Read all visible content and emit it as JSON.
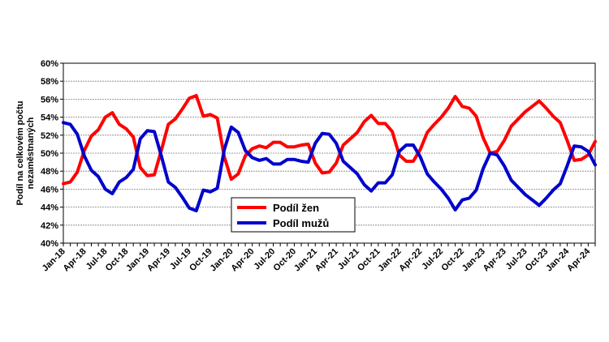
{
  "chart_data": {
    "type": "line",
    "ylabel_lines": [
      "Podíl na celkovém počtu",
      "nezaměstnaných"
    ],
    "ylim": [
      40,
      60
    ],
    "yticks": [
      40,
      42,
      44,
      46,
      48,
      50,
      52,
      54,
      56,
      58,
      60
    ],
    "ytick_suffix": "%",
    "grid": true,
    "legend_position": "bottom-center",
    "x_tick_labels": [
      "Jan-18",
      "Apr-18",
      "Jul-18",
      "Oct-18",
      "Jan-19",
      "Apr-19",
      "Jul-19",
      "Oct-19",
      "Jan-20",
      "Apr-20",
      "Jul-20",
      "Oct-20",
      "Jan-21",
      "Apr-21",
      "Jul-21",
      "Oct-21",
      "Jan-22",
      "Apr-22",
      "Jul-22",
      "Oct-22",
      "Jan-23",
      "Apr-23",
      "Jul-23",
      "Oct-23",
      "Jan-24",
      "Apr-24"
    ],
    "x_tick_step_months": 3,
    "series": [
      {
        "name": "Podíl žen",
        "color": "#ff0000",
        "values": [
          46.6,
          46.8,
          47.9,
          50.3,
          51.9,
          52.6,
          54.0,
          54.5,
          53.2,
          52.7,
          51.8,
          48.4,
          47.5,
          47.6,
          50.3,
          53.2,
          53.8,
          54.9,
          56.1,
          56.4,
          54.1,
          54.3,
          53.9,
          49.6,
          47.1,
          47.7,
          49.7,
          50.5,
          50.8,
          50.6,
          51.2,
          51.2,
          50.7,
          50.7,
          50.9,
          51.0,
          48.9,
          47.8,
          47.9,
          48.9,
          50.9,
          51.6,
          52.3,
          53.5,
          54.2,
          53.3,
          53.3,
          52.4,
          49.8,
          49.1,
          49.1,
          50.4,
          52.3,
          53.2,
          54.0,
          55.0,
          56.3,
          55.2,
          55.0,
          54.1,
          51.7,
          50.0,
          50.2,
          51.4,
          53.0,
          53.8,
          54.6,
          55.2,
          55.8,
          55.0,
          54.1,
          53.4,
          51.4,
          49.2,
          49.3,
          49.8,
          51.3
        ]
      },
      {
        "name": "Podíl mužů",
        "color": "#0000cc",
        "values": [
          53.4,
          53.2,
          52.1,
          49.7,
          48.1,
          47.4,
          46.0,
          45.5,
          46.8,
          47.3,
          48.2,
          51.6,
          52.5,
          52.4,
          49.7,
          46.8,
          46.2,
          45.1,
          43.9,
          43.6,
          45.9,
          45.7,
          46.1,
          50.4,
          52.9,
          52.3,
          50.3,
          49.5,
          49.2,
          49.4,
          48.8,
          48.8,
          49.3,
          49.3,
          49.1,
          49.0,
          51.1,
          52.2,
          52.1,
          51.1,
          49.1,
          48.4,
          47.7,
          46.5,
          45.8,
          46.7,
          46.7,
          47.6,
          50.2,
          50.9,
          50.9,
          49.6,
          47.7,
          46.8,
          46.0,
          45.0,
          43.7,
          44.8,
          45.0,
          45.9,
          48.3,
          50.0,
          49.8,
          48.6,
          47.0,
          46.2,
          45.4,
          44.8,
          44.2,
          45.0,
          45.9,
          46.6,
          48.6,
          50.8,
          50.7,
          50.2,
          48.7
        ]
      }
    ]
  }
}
